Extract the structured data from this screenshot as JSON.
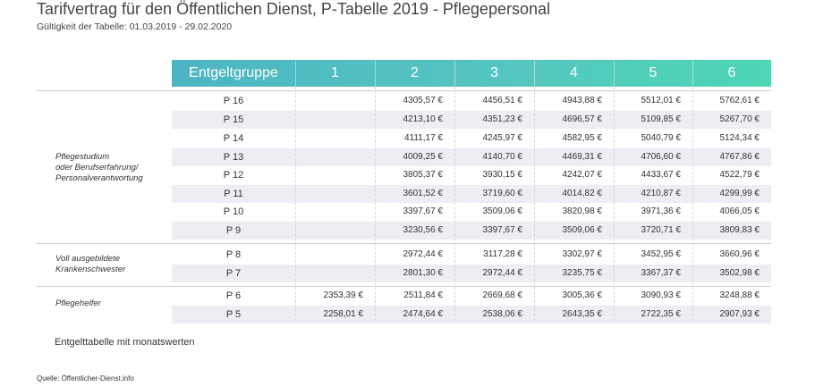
{
  "title": "Tarifvertrag für den Öffentlichen Dienst, P-Tabelle 2019 - Pflegepersonal",
  "subtitle": "Gültigkeit der Tabelle: 01.03.2019 - 29.02.2020",
  "table": {
    "header": [
      "Entgeltgruppe",
      "1",
      "2",
      "3",
      "4",
      "5",
      "6"
    ],
    "groups": [
      {
        "label_lines": [
          "Pflegestudium",
          "oder Berufserfahrung/",
          "Personalverantwortung"
        ]
      },
      {
        "label_lines": [
          "Voll ausgebildete",
          "Krankenschwester"
        ]
      },
      {
        "label_lines": [
          "Pflegehelfer"
        ]
      }
    ],
    "rows": [
      {
        "grade": "P 16",
        "values": [
          "",
          "4305,57 €",
          "4456,51 €",
          "4943,88 €",
          "5512,01 €",
          "5762,61 €"
        ]
      },
      {
        "grade": "P 15",
        "values": [
          "",
          "4213,10 €",
          "4351,23 €",
          "4696,57 €",
          "5109,85 €",
          "5267,70 €"
        ]
      },
      {
        "grade": "P 14",
        "values": [
          "",
          "4111,17 €",
          "4245,97 €",
          "4582,95 €",
          "5040,79 €",
          "5124,34 €"
        ]
      },
      {
        "grade": "P 13",
        "values": [
          "",
          "4009,25 €",
          "4140,70 €",
          "4469,31 €",
          "4706,60 €",
          "4767,86 €"
        ]
      },
      {
        "grade": "P 12",
        "values": [
          "",
          "3805,37 €",
          "3930,15 €",
          "4242,07 €",
          "4433,67 €",
          "4522,79 €"
        ]
      },
      {
        "grade": "P 11",
        "values": [
          "",
          "3601,52 €",
          "3719,60 €",
          "4014,82 €",
          "4210,87 €",
          "4299,99 €"
        ]
      },
      {
        "grade": "P 10",
        "values": [
          "",
          "3397,67 €",
          "3509,06 €",
          "3820,98 €",
          "3971,36 €",
          "4066,05 €"
        ]
      },
      {
        "grade": "P 9",
        "values": [
          "",
          "3230,56 €",
          "3397,67 €",
          "3509,06 €",
          "3720,71 €",
          "3809,83 €"
        ]
      },
      {
        "grade": "P 8",
        "values": [
          "",
          "2972,44 €",
          "3117,28 €",
          "3302,97 €",
          "3452,95 €",
          "3660,96 €"
        ]
      },
      {
        "grade": "P 7",
        "values": [
          "",
          "2801,30 €",
          "2972,44 €",
          "3235,75 €",
          "3367,37 €",
          "3502,98 €"
        ]
      },
      {
        "grade": "P 6",
        "values": [
          "2353,39 €",
          "2511,84 €",
          "2669,68 €",
          "3005,36 €",
          "3090,93 €",
          "3248,88 €"
        ]
      },
      {
        "grade": "P 5",
        "values": [
          "2258,01 €",
          "2474,64 €",
          "2538,06 €",
          "2643,35 €",
          "2722,35 €",
          "2907,93 €"
        ]
      }
    ]
  },
  "note": "Entgelttabelle mit monatswerten",
  "source": "Quelle: Öffentlicher-Dienst.info",
  "colors": {
    "header_start": "#4eb4c3",
    "header_end": "#4ed6b5",
    "row_shade": "#ededf3"
  }
}
